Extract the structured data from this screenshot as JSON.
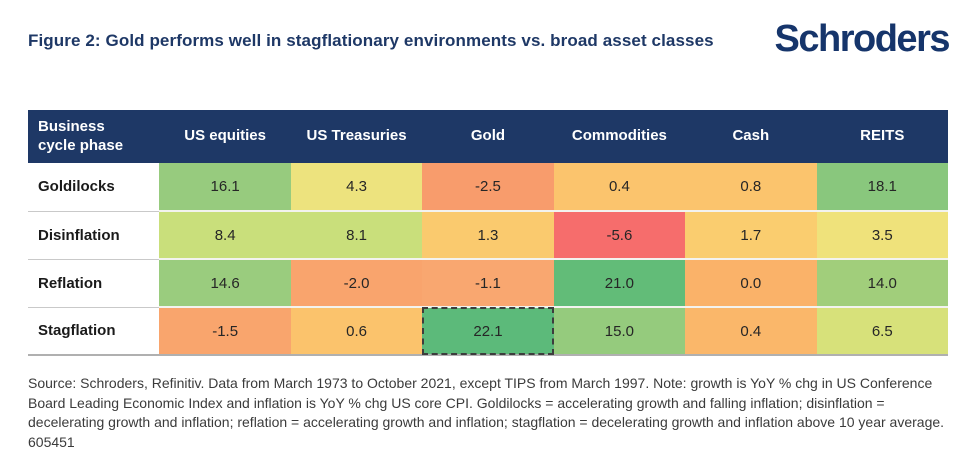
{
  "header": {
    "title": "Figure 2: Gold performs well in stagflationary environments vs. broad asset classes",
    "logo": "Schroders"
  },
  "colors": {
    "navy": "#1E3866",
    "logo_navy": "#16356B",
    "highlight_dash": "#3d3d3d",
    "green_strong": "#5CBA7A",
    "red_strong": "#F66D6C"
  },
  "table": {
    "columns": [
      "Business cycle phase",
      "US equities",
      "US Treasuries",
      "Gold",
      "Commodities",
      "Cash",
      "REITS"
    ],
    "rows": [
      {
        "phase": "Goldilocks",
        "cells": [
          {
            "value": "16.1",
            "bg": "#97CB7E"
          },
          {
            "value": "4.3",
            "bg": "#EDE37E"
          },
          {
            "value": "-2.5",
            "bg": "#F89C6C"
          },
          {
            "value": "0.4",
            "bg": "#FBC46D"
          },
          {
            "value": "0.8",
            "bg": "#FBC46D"
          },
          {
            "value": "18.1",
            "bg": "#89C77D"
          }
        ]
      },
      {
        "phase": "Disinflation",
        "cells": [
          {
            "value": "8.4",
            "bg": "#C9DF7B"
          },
          {
            "value": "8.1",
            "bg": "#C9DF7B"
          },
          {
            "value": "1.3",
            "bg": "#FACA6E"
          },
          {
            "value": "-5.6",
            "bg": "#F66D6C"
          },
          {
            "value": "1.7",
            "bg": "#FACD6F"
          },
          {
            "value": "3.5",
            "bg": "#EFE27B"
          }
        ]
      },
      {
        "phase": "Reflation",
        "cells": [
          {
            "value": "14.6",
            "bg": "#9ACC7E"
          },
          {
            "value": "-2.0",
            "bg": "#F9A46D"
          },
          {
            "value": "-1.1",
            "bg": "#F9A770"
          },
          {
            "value": "21.0",
            "bg": "#62BC78"
          },
          {
            "value": "0.0",
            "bg": "#FAB269"
          },
          {
            "value": "14.0",
            "bg": "#A1CE7B"
          }
        ]
      },
      {
        "phase": "Stagflation",
        "cells": [
          {
            "value": "-1.5",
            "bg": "#F9A56D"
          },
          {
            "value": "0.6",
            "bg": "#FBC36C"
          },
          {
            "value": "22.1",
            "bg": "#5CBA7A",
            "highlight": true
          },
          {
            "value": "15.0",
            "bg": "#95CB7D"
          },
          {
            "value": "0.4",
            "bg": "#FAB76A"
          },
          {
            "value": "6.5",
            "bg": "#D7E17A"
          }
        ]
      }
    ]
  },
  "chart_data": {
    "type": "heatmap",
    "title": "Figure 2: Gold performs well in stagflationary environments vs. broad asset classes",
    "row_label_header": "Business cycle phase",
    "columns": [
      "US equities",
      "US Treasuries",
      "Gold",
      "Commodities",
      "Cash",
      "REITS"
    ],
    "rows": [
      "Goldilocks",
      "Disinflation",
      "Reflation",
      "Stagflation"
    ],
    "values": [
      [
        16.1,
        4.3,
        -2.5,
        0.4,
        0.8,
        18.1
      ],
      [
        8.4,
        8.1,
        1.3,
        -5.6,
        1.7,
        3.5
      ],
      [
        14.6,
        -2.0,
        -1.1,
        21.0,
        0.0,
        14.0
      ],
      [
        -1.5,
        0.6,
        22.1,
        15.0,
        0.4,
        6.5
      ]
    ],
    "value_range": [
      -5.6,
      22.1
    ],
    "color_scale": "red-yellow-green",
    "highlighted_cell": {
      "row": "Stagflation",
      "column": "Gold",
      "value": 22.1
    }
  },
  "footnote": "Source: Schroders, Refinitiv. Data from March 1973 to October 2021, except TIPS from March 1997. Note: growth is YoY % chg in US Conference Board Leading Economic Index and inflation is YoY % chg US core CPI. Goldilocks = accelerating growth and falling inflation; disinflation = decelerating growth and inflation; reflation = accelerating growth and inflation; stagflation = decelerating growth and inflation above 10 year average. 605451"
}
